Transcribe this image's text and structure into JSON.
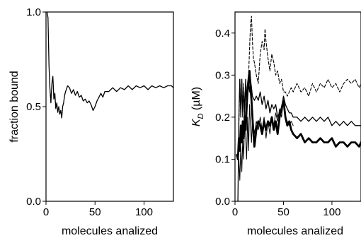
{
  "chart_data": [
    {
      "type": "line",
      "title": "",
      "xlabel": "molecules analized",
      "ylabel": "fraction bound",
      "xlim": [
        0,
        130
      ],
      "ylim": [
        0,
        1.0
      ],
      "xticks": [
        "0",
        "50",
        "100"
      ],
      "yticks": [
        "0.0",
        "0.5",
        "1.0"
      ],
      "grid": false,
      "series": [
        {
          "line_style": "solid",
          "color": "#000000",
          "x": [
            1,
            2,
            3,
            4,
            5,
            6,
            7,
            8,
            9,
            10,
            11,
            12,
            13,
            14,
            15,
            16,
            17,
            18,
            19,
            20,
            22,
            24,
            26,
            28,
            30,
            32,
            34,
            36,
            38,
            40,
            42,
            44,
            46,
            48,
            50,
            52,
            54,
            56,
            58,
            60,
            64,
            68,
            72,
            76,
            80,
            84,
            88,
            92,
            96,
            100,
            104,
            108,
            112,
            116,
            120,
            124,
            128,
            130
          ],
          "y": [
            1.0,
            0.97,
            0.72,
            0.6,
            0.52,
            0.62,
            0.66,
            0.54,
            0.57,
            0.49,
            0.52,
            0.47,
            0.5,
            0.46,
            0.48,
            0.44,
            0.5,
            0.52,
            0.56,
            0.58,
            0.61,
            0.6,
            0.57,
            0.59,
            0.56,
            0.58,
            0.55,
            0.56,
            0.53,
            0.54,
            0.52,
            0.53,
            0.51,
            0.48,
            0.5,
            0.53,
            0.55,
            0.57,
            0.55,
            0.58,
            0.58,
            0.6,
            0.58,
            0.6,
            0.59,
            0.61,
            0.59,
            0.61,
            0.6,
            0.61,
            0.59,
            0.61,
            0.6,
            0.61,
            0.6,
            0.61,
            0.61,
            0.6
          ]
        }
      ]
    },
    {
      "type": "line",
      "title": "",
      "xlabel": "molecules analized",
      "ylabel": "K_D (µM)",
      "ylabel_main": "K",
      "ylabel_sub": "D",
      "ylabel_unit": " (µM)",
      "xlim": [
        0,
        130
      ],
      "ylim": [
        0,
        0.45
      ],
      "xticks": [
        "0",
        "50",
        "100"
      ],
      "yticks": [
        "0.0",
        "0.1",
        "0.2",
        "0.3",
        "0.4"
      ],
      "grid": false,
      "series": [
        {
          "line_style": "dashed",
          "color": "#000000",
          "x": [
            4,
            5,
            6,
            7,
            8,
            9,
            10,
            11,
            12,
            13,
            14,
            15,
            16,
            17,
            18,
            19,
            20,
            22,
            24,
            26,
            28,
            30,
            31,
            32,
            34,
            36,
            38,
            40,
            42,
            44,
            46,
            48,
            50,
            52,
            54,
            56,
            58,
            60,
            64,
            68,
            72,
            76,
            80,
            84,
            88,
            92,
            96,
            100,
            104,
            108,
            112,
            116,
            120,
            124,
            128,
            130
          ],
          "y": [
            0.18,
            0.29,
            0.2,
            0.29,
            0.2,
            0.28,
            0.2,
            0.29,
            0.22,
            0.25,
            0.3,
            0.36,
            0.42,
            0.44,
            0.38,
            0.34,
            0.33,
            0.3,
            0.28,
            0.35,
            0.38,
            0.36,
            0.41,
            0.38,
            0.34,
            0.31,
            0.35,
            0.33,
            0.3,
            0.31,
            0.28,
            0.29,
            0.26,
            0.26,
            0.25,
            0.26,
            0.27,
            0.26,
            0.28,
            0.26,
            0.27,
            0.25,
            0.28,
            0.26,
            0.28,
            0.27,
            0.29,
            0.27,
            0.28,
            0.26,
            0.28,
            0.29,
            0.28,
            0.29,
            0.27,
            0.28
          ]
        },
        {
          "line_style": "solid",
          "color": "#000000",
          "x": [
            3,
            4,
            5,
            6,
            7,
            8,
            9,
            10,
            11,
            12,
            13,
            14,
            15,
            16,
            17,
            18,
            20,
            22,
            24,
            26,
            28,
            30,
            32,
            34,
            36,
            38,
            40,
            42,
            44,
            46,
            48,
            50,
            52,
            54,
            56,
            58,
            60,
            64,
            68,
            72,
            76,
            80,
            84,
            88,
            92,
            96,
            100,
            104,
            108,
            112,
            116,
            120,
            124,
            128,
            130
          ],
          "y": [
            0.0,
            0.2,
            0.29,
            0.2,
            0.29,
            0.2,
            0.27,
            0.21,
            0.29,
            0.22,
            0.25,
            0.28,
            0.26,
            0.29,
            0.27,
            0.25,
            0.24,
            0.25,
            0.24,
            0.26,
            0.23,
            0.25,
            0.22,
            0.24,
            0.21,
            0.23,
            0.22,
            0.23,
            0.2,
            0.21,
            0.22,
            0.25,
            0.23,
            0.22,
            0.21,
            0.21,
            0.2,
            0.2,
            0.19,
            0.2,
            0.19,
            0.2,
            0.19,
            0.2,
            0.19,
            0.2,
            0.18,
            0.19,
            0.18,
            0.19,
            0.18,
            0.19,
            0.18,
            0.18,
            0.18
          ]
        },
        {
          "line_style": "thin",
          "color": "#000000",
          "x": [
            4,
            5,
            6,
            7,
            8,
            9,
            10,
            11,
            12,
            13,
            14,
            15,
            16,
            17,
            18,
            20,
            22,
            24,
            26,
            28,
            30,
            32,
            34,
            36,
            38,
            40,
            42,
            44,
            46,
            48,
            50,
            52,
            54,
            56,
            58,
            60
          ],
          "y": [
            0.1,
            0.05,
            0.13,
            0.07,
            0.15,
            0.1,
            0.22,
            0.15,
            0.1,
            0.2,
            0.12,
            0.23,
            0.18,
            0.14,
            0.2,
            0.16,
            0.19,
            0.17,
            0.2,
            0.17,
            0.2,
            0.15,
            0.19,
            0.16,
            0.2,
            0.18,
            0.21,
            0.19,
            0.22,
            0.2,
            0.24,
            0.2,
            0.19,
            0.18,
            0.19,
            0.18
          ]
        },
        {
          "line_style": "bold",
          "color": "#000000",
          "x": [
            2,
            3,
            4,
            5,
            6,
            7,
            8,
            9,
            10,
            11,
            12,
            13,
            14,
            15,
            16,
            17,
            18,
            20,
            22,
            24,
            26,
            28,
            30,
            32,
            34,
            36,
            38,
            40,
            42,
            44,
            46,
            48,
            50,
            52,
            54,
            56,
            58,
            60,
            64,
            68,
            72,
            76,
            80,
            84,
            88,
            92,
            96,
            100,
            104,
            108,
            112,
            116,
            120,
            124,
            128,
            130
          ],
          "y": [
            0.11,
            0.1,
            0.15,
            0.12,
            0.18,
            0.14,
            0.19,
            0.15,
            0.2,
            0.17,
            0.22,
            0.27,
            0.29,
            0.31,
            0.27,
            0.24,
            0.2,
            0.13,
            0.17,
            0.19,
            0.18,
            0.16,
            0.19,
            0.17,
            0.19,
            0.18,
            0.2,
            0.17,
            0.19,
            0.16,
            0.2,
            0.22,
            0.24,
            0.2,
            0.18,
            0.19,
            0.17,
            0.16,
            0.15,
            0.16,
            0.14,
            0.15,
            0.14,
            0.14,
            0.15,
            0.14,
            0.14,
            0.15,
            0.13,
            0.14,
            0.14,
            0.13,
            0.14,
            0.14,
            0.13,
            0.14
          ]
        }
      ]
    }
  ]
}
